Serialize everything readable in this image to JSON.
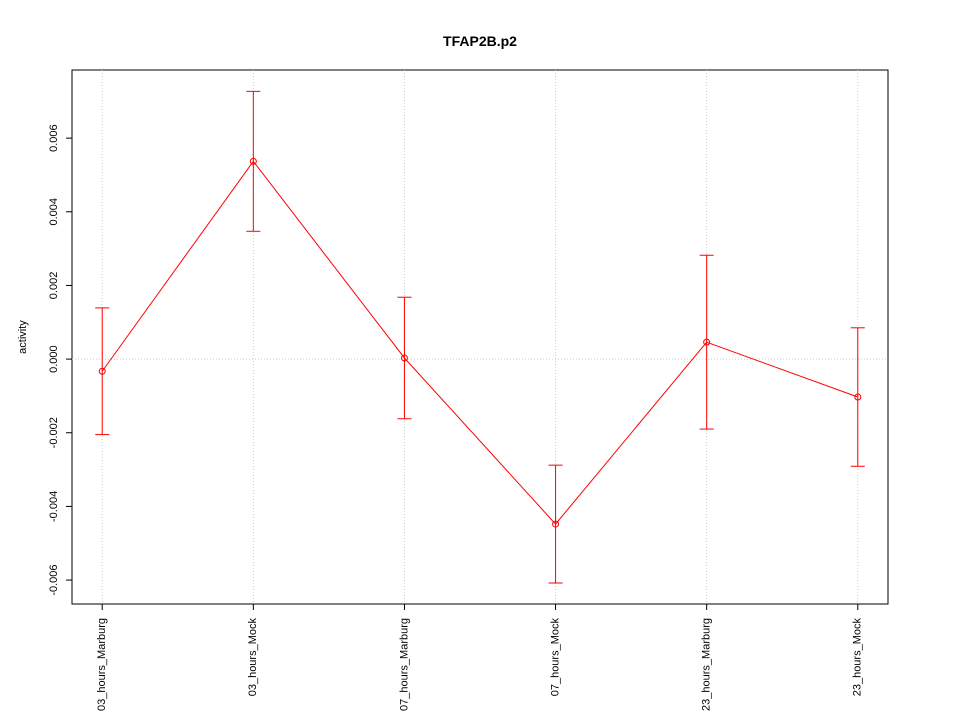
{
  "chart_data": {
    "type": "line",
    "title": "TFAP2B.p2",
    "ylabel": "activity",
    "categories": [
      "03_hours_Marburg",
      "03_hours_Mock",
      "07_hours_Marburg",
      "07_hours_Mock",
      "23_hours_Marburg",
      "23_hours_Mock"
    ],
    "series": [
      {
        "name": "activity",
        "color": "#ff0000",
        "values": [
          -0.00033,
          0.00537,
          3e-05,
          -0.00448,
          0.00046,
          -0.00103
        ],
        "errors": [
          0.00172,
          0.0019,
          0.00165,
          0.0016,
          0.00236,
          0.00188
        ]
      }
    ],
    "ylim": [
      -0.00665,
      0.00785
    ],
    "yticks": [
      -0.006,
      -0.004,
      -0.002,
      {
        "value": 0,
        "label": "0.000"
      },
      0.002,
      0.004,
      0.006
    ],
    "grid": true
  }
}
